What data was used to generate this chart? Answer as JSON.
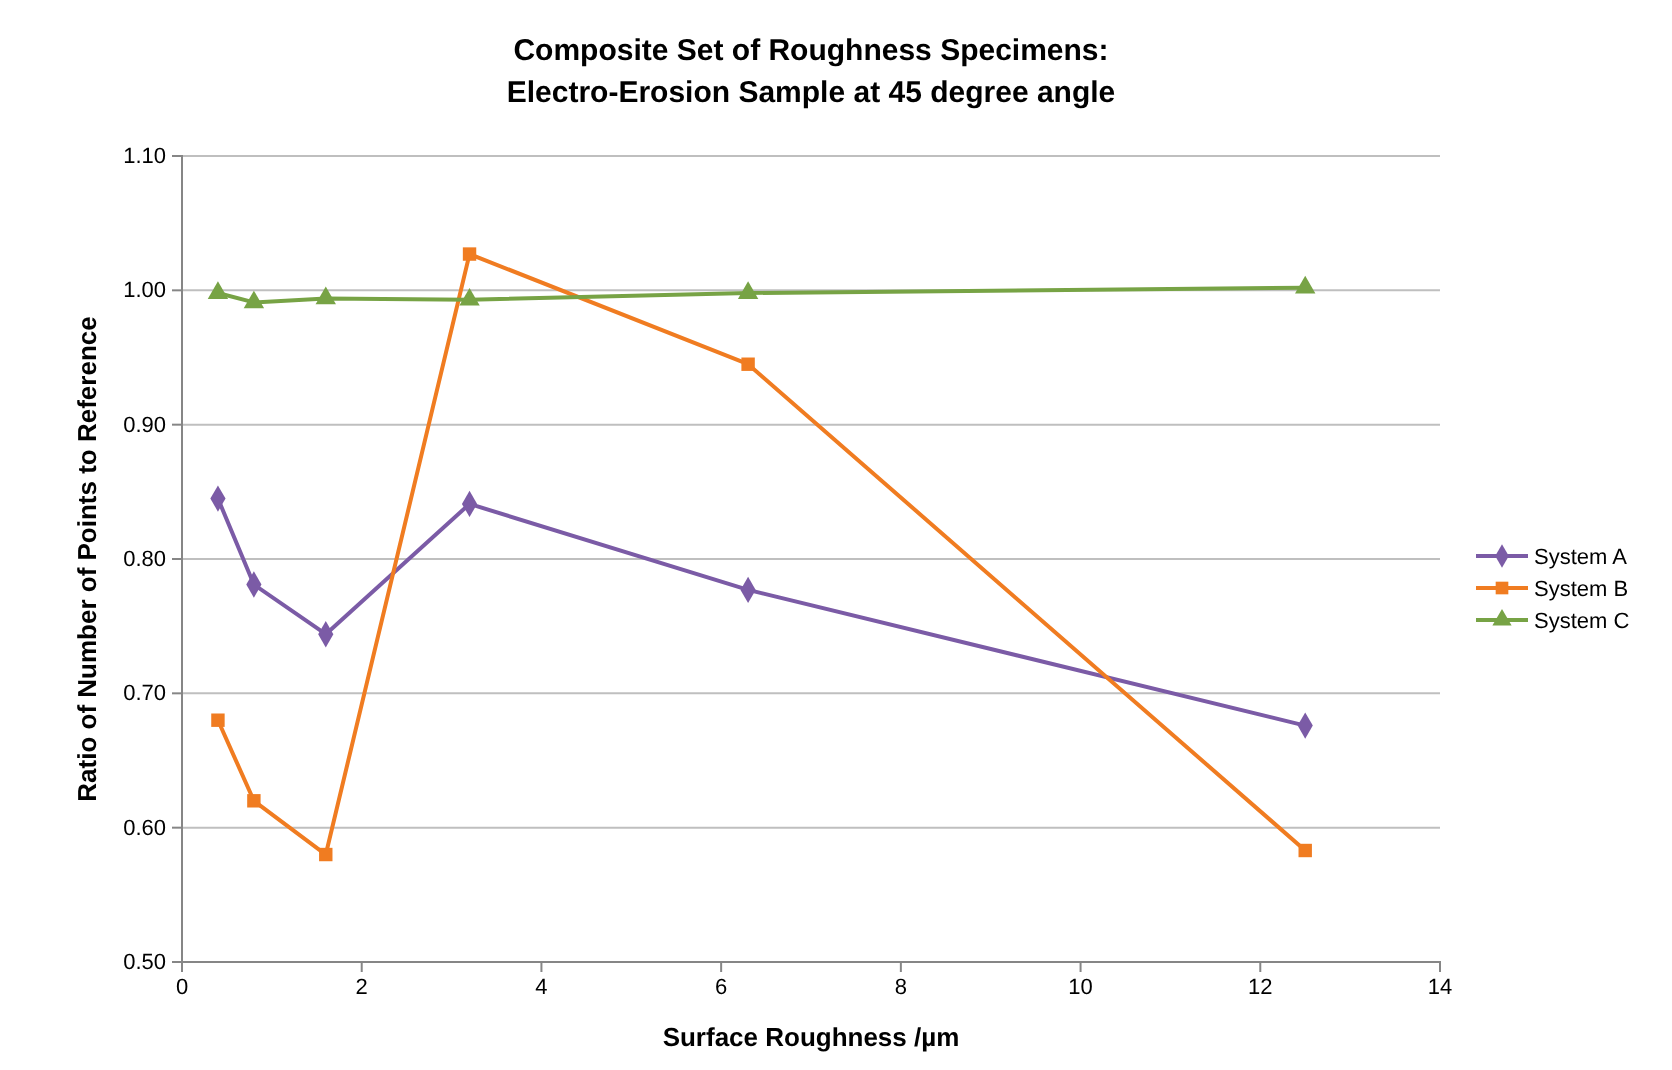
{
  "chart_data": {
    "type": "line",
    "title": "Composite Set of Roughness Specimens:\nElectro-Erosion Sample at 45 degree angle",
    "xlabel": "Surface Roughness /µm",
    "ylabel": "Ratio of Number of Points to Reference",
    "xlim": [
      0,
      14
    ],
    "xticks": [
      0,
      2,
      4,
      6,
      8,
      10,
      12,
      14
    ],
    "ylim": [
      0.5,
      1.1
    ],
    "yticks": [
      {
        "value": 0.5,
        "label": "0.50"
      },
      {
        "value": 0.6,
        "label": "0.60"
      },
      {
        "value": 0.7,
        "label": "0.70"
      },
      {
        "value": 0.8,
        "label": "0.80"
      },
      {
        "value": 0.9,
        "label": "0.90"
      },
      {
        "value": 1.0,
        "label": "1.00"
      },
      {
        "value": 1.1,
        "label": "1.10"
      }
    ],
    "grid": "y",
    "legend": "right",
    "line_style": "solid",
    "x": [
      0.4,
      0.8,
      1.6,
      3.2,
      6.3,
      12.5
    ],
    "series": [
      {
        "name": "System A",
        "color": "#7b5ba6",
        "marker": "diamond",
        "values": [
          0.845,
          0.781,
          0.744,
          0.841,
          0.777,
          0.676
        ]
      },
      {
        "name": "System B",
        "color": "#f07c21",
        "marker": "square",
        "values": [
          0.68,
          0.62,
          0.58,
          1.027,
          0.945,
          0.583
        ]
      },
      {
        "name": "System C",
        "color": "#77a345",
        "marker": "triangle",
        "values": [
          0.998,
          0.991,
          0.994,
          0.993,
          0.998,
          1.002
        ]
      }
    ]
  }
}
